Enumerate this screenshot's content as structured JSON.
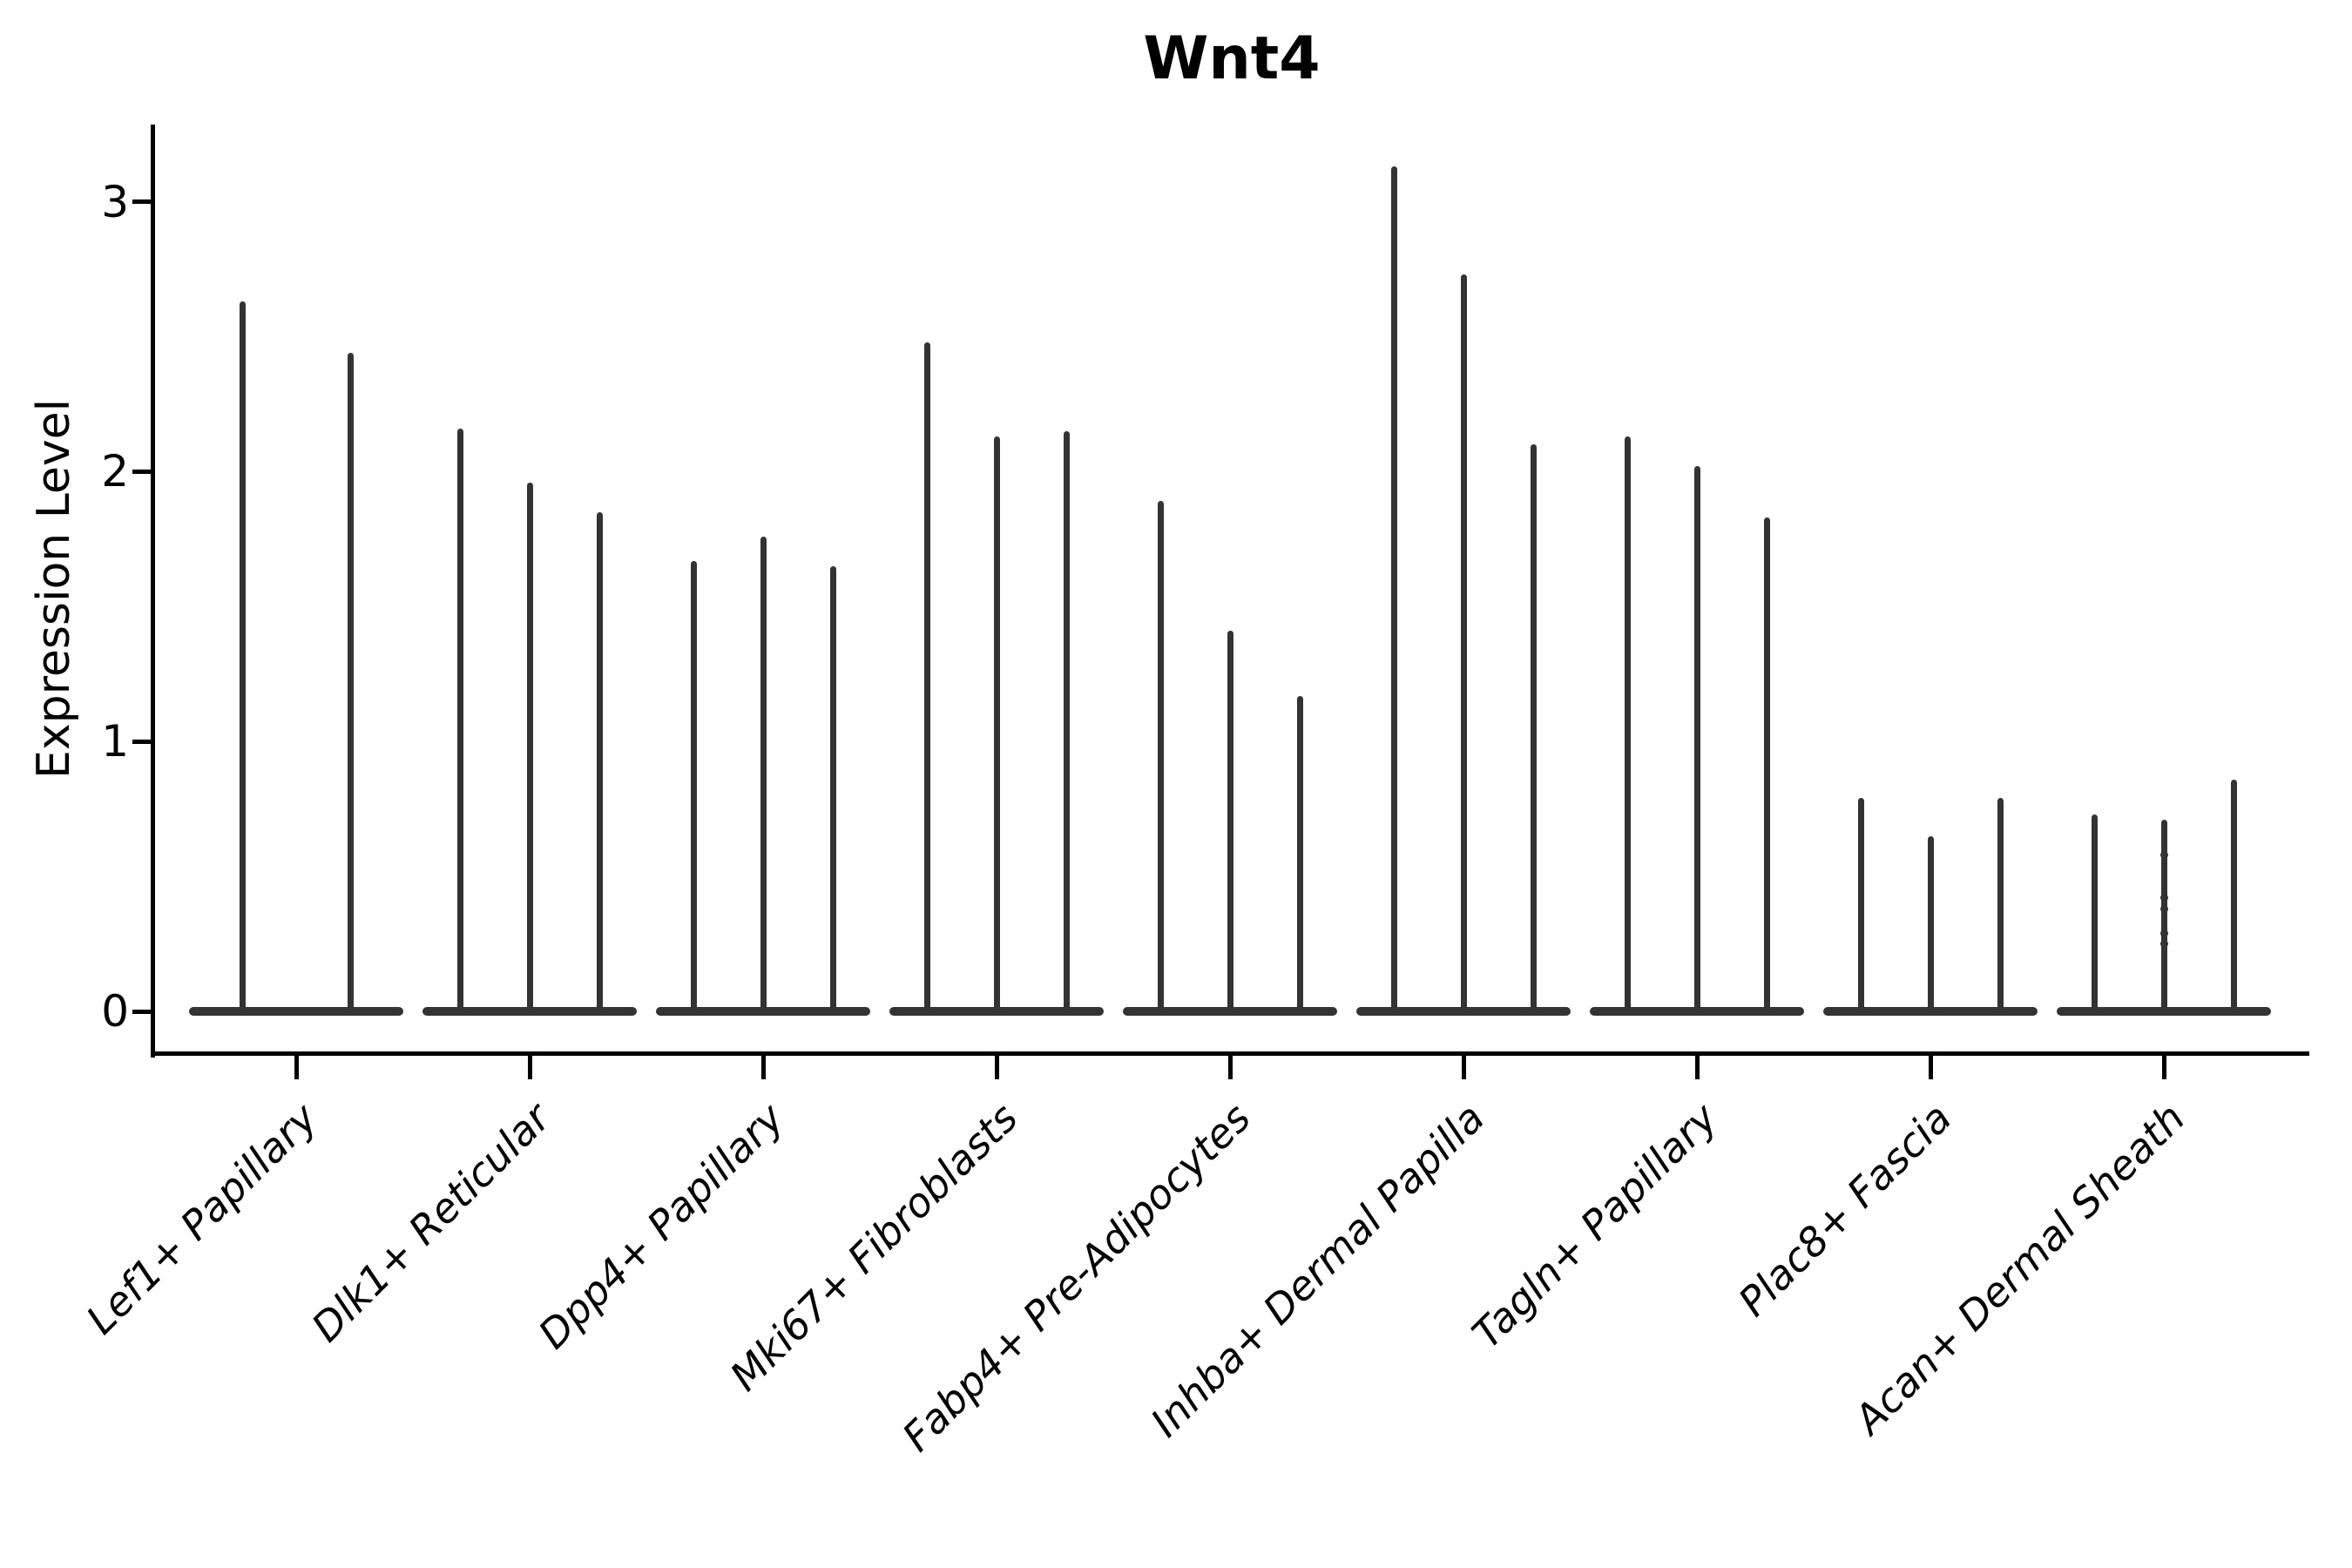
{
  "chart_data": {
    "type": "violin",
    "title": "Wnt4",
    "ylabel": "Expression Level",
    "xlabel": "",
    "yticks": [
      "0",
      "1",
      "2",
      "3"
    ],
    "ytick_values": [
      0,
      1,
      2,
      3
    ],
    "ylim": [
      -0.155,
      3.29
    ],
    "grid": false,
    "legend": "none",
    "ink_color": "#333333",
    "axis_color": "#000000",
    "background_color": "#ffffff",
    "note": "Each category shows thin spike-shaped violins (expression mostly zero); spike value = maximum expression reached per violin",
    "groups": [
      {
        "name": "Lef1+ Papillary",
        "peaks": [
          2.63,
          2.44
        ]
      },
      {
        "name": "Dlk1+ Reticular",
        "peaks": [
          2.16,
          1.96,
          1.85
        ]
      },
      {
        "name": "Dpp4+ Papillary",
        "peaks": [
          1.67,
          1.76,
          1.65
        ]
      },
      {
        "name": "Mki67+ Fibroblasts",
        "peaks": [
          2.48,
          2.13,
          2.15
        ]
      },
      {
        "name": "Fabp4+ Pre-Adipocytes",
        "peaks": [
          1.89,
          1.41,
          1.17
        ]
      },
      {
        "name": "Inhba+ Dermal Papilla",
        "peaks": [
          3.13,
          2.73,
          2.1
        ]
      },
      {
        "name": "Tagln+ Papillary",
        "peaks": [
          2.13,
          2.02,
          1.83
        ]
      },
      {
        "name": "Plac8+ Fascia",
        "peaks": [
          0.79,
          0.65,
          0.79
        ]
      },
      {
        "name": "Acan+ Dermal Sheath",
        "peaks": [
          0.73,
          0.71,
          0.86
        ],
        "points": {
          "violin_index": 1,
          "values": [
            0.58,
            0.42,
            0.38,
            0.29,
            0.25
          ]
        }
      }
    ]
  }
}
